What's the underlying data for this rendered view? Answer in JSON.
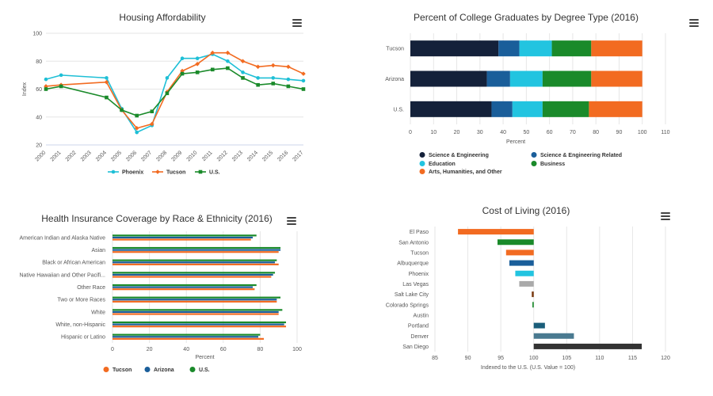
{
  "colors": {
    "phoenix": "#1ebfd6",
    "tucson": "#f26b21",
    "us": "#1a8a2a",
    "arizona": "#1a5e9a",
    "grid": "#e6e6e6",
    "axis": "#ccd6eb",
    "degree": [
      "#14213a",
      "#1a5e9a",
      "#22c4e0",
      "#1a8a2a",
      "#f26b21"
    ],
    "col_tucson": "#f26b21",
    "col_albuquerque": "#1a5e9a",
    "col_phoenix": "#22c4e0",
    "col_gray": "#aaaaaa",
    "col_slc": "#7a3a10",
    "col_cs": "#1a8a2a",
    "col_portland": "#1a5e7a",
    "col_denver": "#4a7a90",
    "col_sandiego": "#333333"
  },
  "chart_data": [
    {
      "type": "line",
      "title": "Housing Affordability",
      "xlabel": "",
      "ylabel": "Index",
      "ylim": [
        20,
        100
      ],
      "yticks": [
        20,
        40,
        60,
        80,
        100
      ],
      "x": [
        "2000",
        "2001",
        "2002",
        "2003",
        "2004",
        "2005",
        "2006",
        "2007",
        "2008",
        "2009",
        "2010",
        "2011",
        "2012",
        "2013",
        "2014",
        "2015",
        "2016",
        "2017"
      ],
      "series": [
        {
          "name": "Phoenix",
          "color": "#1ebfd6",
          "values": [
            67,
            70,
            null,
            null,
            68,
            46,
            29,
            34,
            68,
            82,
            82,
            85,
            80,
            72,
            68,
            68,
            67,
            66
          ]
        },
        {
          "name": "Tucson",
          "color": "#f26b21",
          "values": [
            62,
            63,
            null,
            null,
            65,
            45,
            32,
            35,
            58,
            73,
            78,
            86,
            86,
            80,
            76,
            77,
            76,
            71
          ]
        },
        {
          "name": "U.S.",
          "color": "#1a8a2a",
          "values": [
            60,
            62,
            null,
            null,
            54,
            45,
            41,
            44,
            57,
            71,
            72,
            74,
            75,
            68,
            63,
            64,
            62,
            60
          ]
        }
      ],
      "legend": "bottom",
      "grid": true
    },
    {
      "type": "bar",
      "orientation": "horizontal",
      "stacked": true,
      "title": "Percent of College Graduates by Degree Type (2016)",
      "xlabel": "Percent",
      "ylabel": "",
      "xlim": [
        0,
        110
      ],
      "xticks": [
        0,
        10,
        20,
        30,
        40,
        50,
        60,
        70,
        80,
        90,
        100,
        110
      ],
      "categories": [
        "Tucson",
        "Arizona",
        "U.S."
      ],
      "series": [
        {
          "name": "Science & Engineering",
          "values": [
            38,
            33,
            35
          ]
        },
        {
          "name": "Science & Engineering Related",
          "values": [
            9,
            10,
            9
          ]
        },
        {
          "name": "Education",
          "values": [
            14,
            14,
            13
          ]
        },
        {
          "name": "Business",
          "values": [
            17,
            21,
            20
          ]
        },
        {
          "name": "Arts, Humanities, and Other",
          "values": [
            22,
            22,
            23
          ]
        }
      ],
      "legend": "bottom"
    },
    {
      "type": "bar",
      "orientation": "horizontal",
      "title": "Health Insurance Coverage by Race & Ethnicity (2016)",
      "xlabel": "Percent",
      "ylabel": "",
      "xlim": [
        0,
        100
      ],
      "xticks": [
        0,
        20,
        40,
        60,
        80,
        100
      ],
      "categories": [
        "American Indian and Alaska Native",
        "Asian",
        "Black or African American",
        "Native Hawaiian and Other Pacifi...",
        "Other Race",
        "Two or More Races",
        "White",
        "White, non-Hispanic",
        "Hispanic or Latino"
      ],
      "series": [
        {
          "name": "Tucson",
          "values": [
            75,
            90,
            90,
            86,
            77,
            89,
            90,
            94,
            82
          ]
        },
        {
          "name": "Arizona",
          "values": [
            76,
            91,
            88,
            87,
            76,
            89,
            90,
            93,
            79
          ]
        },
        {
          "name": "U.S.",
          "values": [
            78,
            91,
            89,
            88,
            78,
            91,
            92,
            94,
            80
          ]
        }
      ],
      "legend": "bottom"
    },
    {
      "type": "bar",
      "orientation": "horizontal",
      "title": "Cost of Living (2016)",
      "xlabel": "Indexed to the U.S. (U.S. Value = 100)",
      "ylabel": "",
      "baseline": 100,
      "xlim": [
        85,
        120
      ],
      "xticks": [
        85,
        90,
        95,
        100,
        105,
        110,
        115,
        120
      ],
      "categories": [
        "El Paso",
        "San Antonio",
        "Tucson",
        "Albuquerque",
        "Phoenix",
        "Las Vegas",
        "Salt Lake City",
        "Colorado Springs",
        "Austin",
        "Portland",
        "Denver",
        "San Diego"
      ],
      "values": [
        88.5,
        94.5,
        95.8,
        96.3,
        97.2,
        97.8,
        99.7,
        99.8,
        100,
        101.7,
        106.1,
        116.4
      ],
      "bar_colors": [
        "#f26b21",
        "#1a8a2a",
        "#f26b21",
        "#1a5e9a",
        "#22c4e0",
        "#aaaaaa",
        "#7a3a10",
        "#1a8a2a",
        "#aaaaaa",
        "#1a5e7a",
        "#4a7a90",
        "#333333"
      ]
    }
  ]
}
